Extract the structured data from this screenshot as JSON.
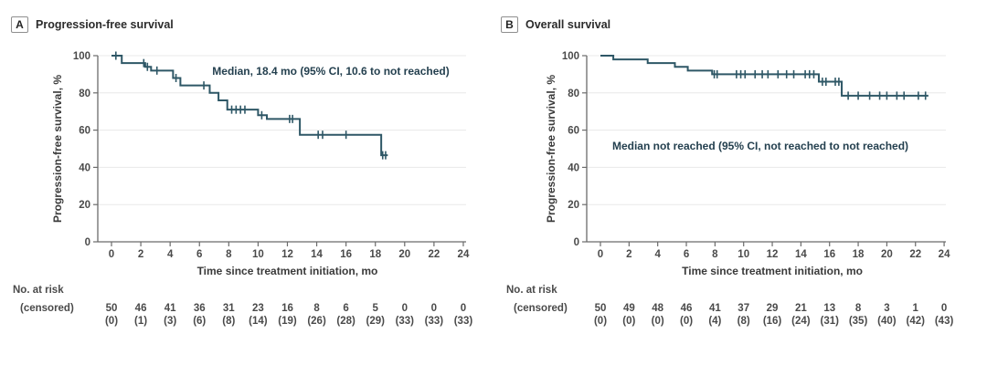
{
  "colors": {
    "curve": "#2e5766",
    "grid": "#e8e8e8",
    "axis": "#6b6b6b",
    "tick_text": "#4a4a4a",
    "label_text": "#3a3a3a",
    "title_text": "#2b2b2b",
    "annotation_text": "#24404f",
    "label_box_border": "#8f8f8f"
  },
  "chart_data": [
    {
      "type": "line",
      "subtype": "kaplan-meier-step",
      "panel_label": "A",
      "title": "Progression-free survival",
      "annotation": "Median, 18.4 mo (95% CI, 10.6 to not reached)",
      "xlabel": "Time since treatment initiation, mo",
      "ylabel": "Progression-free survival, %",
      "xlim": [
        0,
        24
      ],
      "ylim": [
        0,
        100
      ],
      "xticks": [
        0,
        2,
        4,
        6,
        8,
        10,
        12,
        14,
        16,
        18,
        20,
        22,
        24
      ],
      "yticks": [
        0,
        20,
        40,
        60,
        80,
        100
      ],
      "grid": "horizontal",
      "steps": [
        [
          0,
          100
        ],
        [
          0.7,
          96
        ],
        [
          2.3,
          94
        ],
        [
          2.7,
          92
        ],
        [
          4.2,
          88
        ],
        [
          4.7,
          84
        ],
        [
          6.7,
          80
        ],
        [
          7.3,
          76
        ],
        [
          7.9,
          71
        ],
        [
          10,
          68
        ],
        [
          10.6,
          66
        ],
        [
          12.85,
          57.5
        ],
        [
          18.4,
          46.5
        ]
      ],
      "end_t": 18.85,
      "censor_marks": [
        [
          0.3,
          100
        ],
        [
          2.2,
          96
        ],
        [
          2.45,
          94
        ],
        [
          3.1,
          92
        ],
        [
          4.4,
          88
        ],
        [
          6.3,
          84
        ],
        [
          8.2,
          71
        ],
        [
          8.5,
          71
        ],
        [
          8.8,
          71
        ],
        [
          9.1,
          71
        ],
        [
          10.25,
          68
        ],
        [
          12.15,
          66
        ],
        [
          12.35,
          66
        ],
        [
          14.1,
          57.5
        ],
        [
          14.4,
          57.5
        ],
        [
          16,
          57.5
        ],
        [
          18.5,
          46.5
        ],
        [
          18.7,
          46.5
        ]
      ],
      "risk_label_line1": "No. at risk",
      "risk_label_line2": "(censored)",
      "risk_times": [
        0,
        2,
        4,
        6,
        8,
        10,
        12,
        14,
        16,
        18,
        20,
        22,
        24
      ],
      "at_risk": [
        50,
        46,
        41,
        36,
        31,
        23,
        16,
        8,
        6,
        5,
        0,
        0,
        0
      ],
      "censored": [
        0,
        1,
        3,
        6,
        8,
        14,
        19,
        26,
        28,
        29,
        33,
        33,
        33
      ]
    },
    {
      "type": "line",
      "subtype": "kaplan-meier-step",
      "panel_label": "B",
      "title": "Overall survival",
      "annotation": "Median not reached (95% CI, not reached to not reached)",
      "xlabel": "Time since treatment initiation, mo",
      "ylabel": "Progression-free survival, %",
      "xlim": [
        0,
        24
      ],
      "ylim": [
        0,
        100
      ],
      "xticks": [
        0,
        2,
        4,
        6,
        8,
        10,
        12,
        14,
        16,
        18,
        20,
        22,
        24
      ],
      "yticks": [
        0,
        20,
        40,
        60,
        80,
        100
      ],
      "grid": "horizontal",
      "steps": [
        [
          0,
          100
        ],
        [
          0.9,
          98
        ],
        [
          3.3,
          96
        ],
        [
          5.2,
          94
        ],
        [
          6.1,
          92
        ],
        [
          7.8,
          90
        ],
        [
          15.25,
          86
        ],
        [
          16.85,
          78.5
        ]
      ],
      "end_t": 22.9,
      "censor_marks": [
        [
          7.95,
          90
        ],
        [
          8.15,
          90
        ],
        [
          9.5,
          90
        ],
        [
          9.8,
          90
        ],
        [
          10.1,
          90
        ],
        [
          10.8,
          90
        ],
        [
          11.3,
          90
        ],
        [
          11.7,
          90
        ],
        [
          12.4,
          90
        ],
        [
          13,
          90
        ],
        [
          13.5,
          90
        ],
        [
          14.3,
          90
        ],
        [
          14.6,
          90
        ],
        [
          14.9,
          90
        ],
        [
          15.5,
          86
        ],
        [
          15.75,
          86
        ],
        [
          16.4,
          86
        ],
        [
          16.65,
          86
        ],
        [
          17.3,
          78.5
        ],
        [
          18,
          78.5
        ],
        [
          18.8,
          78.5
        ],
        [
          19.5,
          78.5
        ],
        [
          20,
          78.5
        ],
        [
          20.7,
          78.5
        ],
        [
          21.2,
          78.5
        ],
        [
          22.2,
          78.5
        ],
        [
          22.7,
          78.5
        ]
      ],
      "risk_label_line1": "No. at risk",
      "risk_label_line2": "(censored)",
      "risk_times": [
        0,
        2,
        4,
        6,
        8,
        10,
        12,
        14,
        16,
        18,
        20,
        22,
        24
      ],
      "at_risk": [
        50,
        49,
        48,
        46,
        41,
        37,
        29,
        21,
        13,
        8,
        3,
        1,
        0
      ],
      "censored": [
        0,
        0,
        0,
        0,
        4,
        8,
        16,
        24,
        31,
        35,
        40,
        42,
        43
      ]
    }
  ]
}
